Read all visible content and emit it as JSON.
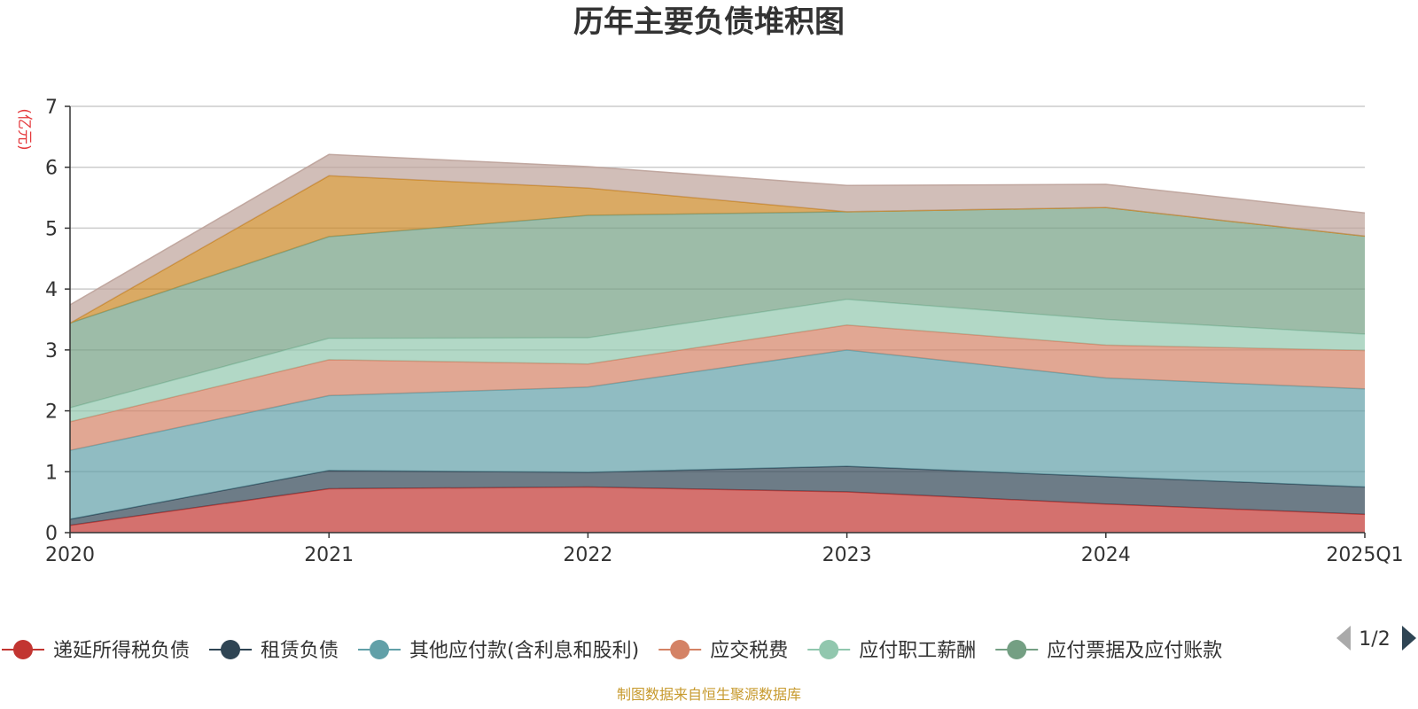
{
  "title": "历年主要负债堆积图",
  "unit_label": "(亿元)",
  "unit_color": "#e4393c",
  "source_note": "制图数据来自恒生聚源数据库",
  "source_color": "#c79a2e",
  "legend_pager": {
    "text": "1/2"
  },
  "chart_data": {
    "type": "area",
    "stacked": true,
    "title": "历年主要负债堆积图",
    "ylabel": "(亿元)",
    "xlabel": "",
    "x": [
      "2020",
      "2021",
      "2022",
      "2023",
      "2024",
      "2025Q1"
    ],
    "ylim": [
      0,
      7
    ],
    "yticks": [
      0,
      1,
      2,
      3,
      4,
      5,
      6,
      7
    ],
    "grid": true,
    "legend_position": "bottom",
    "series": [
      {
        "name": "递延所得税负债",
        "color": "#c23531",
        "values": [
          0.12,
          0.72,
          0.75,
          0.67,
          0.47,
          0.3
        ]
      },
      {
        "name": "租赁负债",
        "color": "#2f4554",
        "values": [
          0.1,
          0.3,
          0.24,
          0.42,
          0.45,
          0.45
        ]
      },
      {
        "name": "其他应付款(含利息和股利)",
        "color": "#61a0a8",
        "values": [
          1.13,
          1.23,
          1.4,
          1.91,
          1.62,
          1.61
        ]
      },
      {
        "name": "应交税费",
        "color": "#d48265",
        "values": [
          0.47,
          0.59,
          0.38,
          0.41,
          0.54,
          0.63
        ]
      },
      {
        "name": "应付职工薪酬",
        "color": "#91c7ae",
        "values": [
          0.23,
          0.35,
          0.43,
          0.42,
          0.42,
          0.27
        ]
      },
      {
        "name": "应付票据及应付账款",
        "color": "#749f83",
        "values": [
          1.39,
          1.67,
          2.01,
          1.44,
          1.84,
          1.61
        ]
      },
      {
        "color": "#ca8622",
        "values": [
          0.0,
          1.0,
          0.45,
          0.0,
          0.0,
          0.0
        ]
      },
      {
        "color": "#bda29a",
        "values": [
          0.3,
          0.35,
          0.35,
          0.43,
          0.38,
          0.38
        ]
      }
    ]
  }
}
